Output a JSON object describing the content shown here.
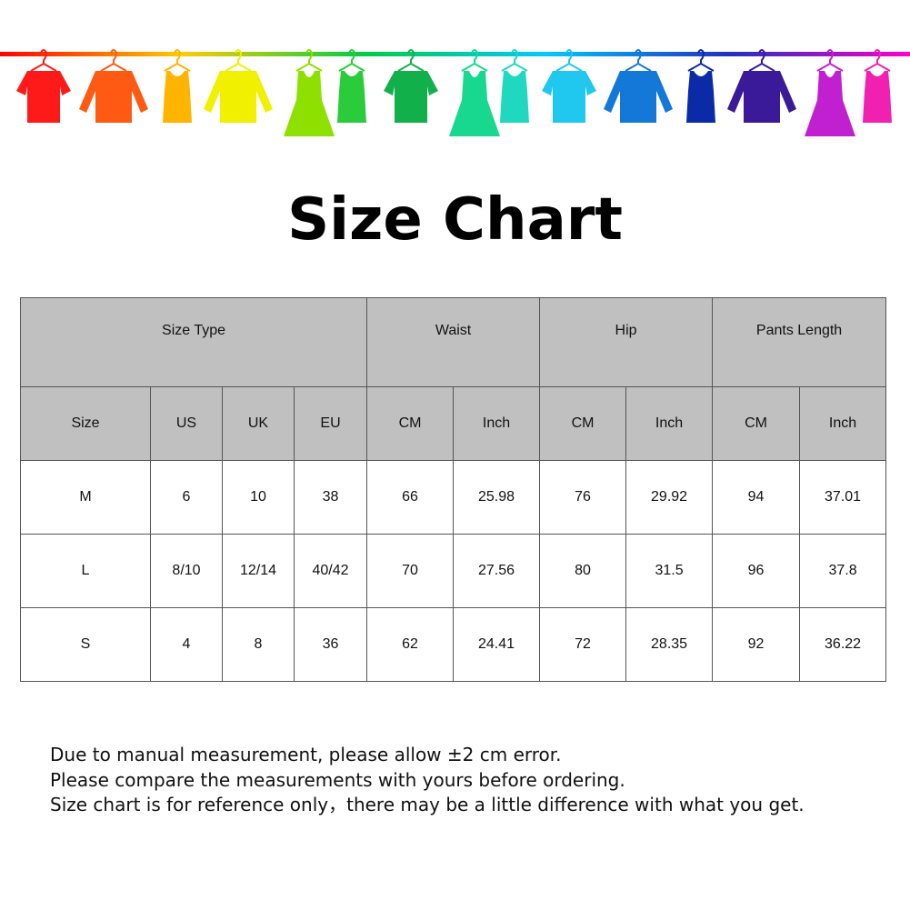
{
  "banner": {
    "garment_colors": [
      "#ff1a1a",
      "#ff5a14",
      "#ffb400",
      "#f0f000",
      "#8ee000",
      "#2bcc3c",
      "#12b04a",
      "#18d890",
      "#20d8c0",
      "#20c8f0",
      "#1478d8",
      "#0a2aa8",
      "#3a1a98",
      "#c020d0",
      "#f020b0"
    ],
    "rod_gradient": [
      "#ff0000",
      "#ffcc00",
      "#00cc44",
      "#00c8ff",
      "#2030c0",
      "#ff00cc"
    ]
  },
  "title": "Size Chart",
  "table": {
    "groups": [
      "Size Type",
      "Waist",
      "Hip",
      "Pants Length"
    ],
    "columns": [
      "Size",
      "US",
      "UK",
      "EU",
      "CM",
      "Inch",
      "CM",
      "Inch",
      "CM",
      "Inch"
    ],
    "rows": [
      [
        "M",
        "6",
        "10",
        "38",
        "66",
        "25.98",
        "76",
        "29.92",
        "94",
        "37.01"
      ],
      [
        "L",
        "8/10",
        "12/14",
        "40/42",
        "70",
        "27.56",
        "80",
        "31.5",
        "96",
        "37.8"
      ],
      [
        "S",
        "4",
        "8",
        "36",
        "62",
        "24.41",
        "72",
        "28.35",
        "92",
        "36.22"
      ]
    ],
    "header_color": "#c0c0c0"
  },
  "notes": [
    "Due to manual measurement, please allow ±2 cm error.",
    "Please compare the measurements with yours before ordering.",
    "Size chart is for reference only，there may be a little difference with what you get."
  ]
}
